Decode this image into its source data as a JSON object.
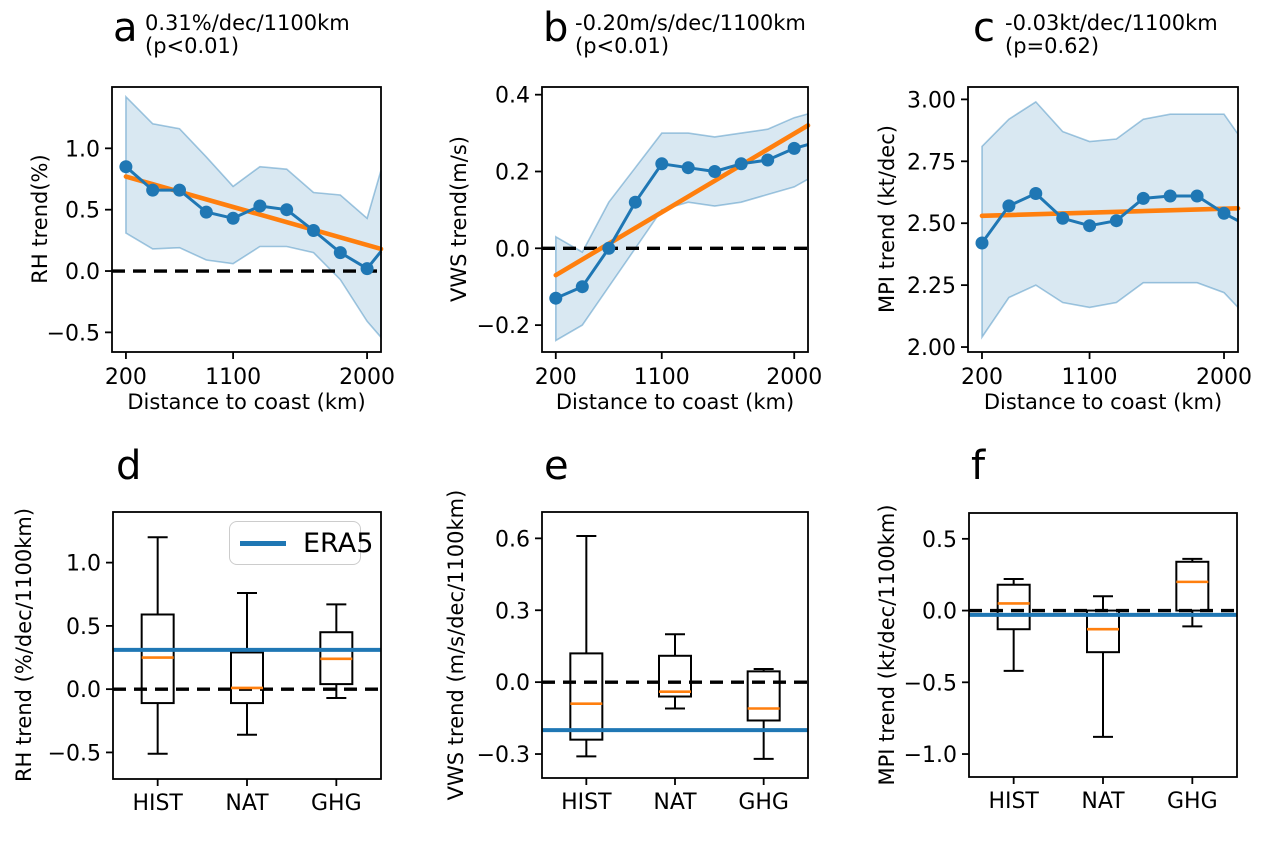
{
  "style": {
    "blue": "#1f77b4",
    "orange": "#ff7f0e",
    "band_fill": "rgba(31,119,180,0.17)",
    "band_edge": "rgba(31,119,180,0.40)",
    "axis_color": "#000000"
  },
  "chart_data": [
    {
      "id": "a",
      "type": "line",
      "letter": "a",
      "title": [
        "0.31%/dec/1100km",
        "(p<0.01)"
      ],
      "ylabel": "RH trend(%)",
      "xlabel": "Distance to coast (km)",
      "x_tick_labels": [
        "200",
        "1100",
        "2000"
      ],
      "x_tick_indices": [
        0,
        4,
        9
      ],
      "n_points": 10,
      "y": [
        0.85,
        0.66,
        0.66,
        0.48,
        0.43,
        0.53,
        0.5,
        0.33,
        0.15,
        0.02
      ],
      "y_right_edge": 0.16,
      "band_upper": [
        1.42,
        1.2,
        1.16,
        0.93,
        0.69,
        0.85,
        0.83,
        0.64,
        0.62,
        0.43
      ],
      "band_upper_right_edge": 0.82,
      "band_lower": [
        0.31,
        0.18,
        0.19,
        0.09,
        0.06,
        0.2,
        0.2,
        0.15,
        -0.07,
        -0.41
      ],
      "band_lower_right_edge": -0.54,
      "trend_line": {
        "start": 0.77,
        "end": 0.18
      },
      "zero_dashed_line": 0.0,
      "yticks": [
        1.0,
        0.5,
        0.0,
        -0.5
      ],
      "ytick_labels": [
        "1.0",
        "0.5",
        "0.0",
        "−0.5"
      ],
      "ylim": [
        -0.66,
        1.5
      ]
    },
    {
      "id": "b",
      "type": "line",
      "letter": "b",
      "title": [
        "-0.20m/s/dec/1100km",
        "(p<0.01)"
      ],
      "ylabel": "VWS trend(m/s)",
      "xlabel": "Distance to coast (km)",
      "x_tick_labels": [
        "200",
        "1100",
        "2000"
      ],
      "x_tick_indices": [
        0,
        4,
        9
      ],
      "n_points": 10,
      "y": [
        -0.13,
        -0.1,
        0.0,
        0.12,
        0.22,
        0.21,
        0.2,
        0.22,
        0.23,
        0.26
      ],
      "y_right_edge": 0.27,
      "band_upper": [
        0.03,
        -0.01,
        0.12,
        0.21,
        0.3,
        0.3,
        0.29,
        0.3,
        0.31,
        0.34
      ],
      "band_upper_right_edge": 0.35,
      "band_lower": [
        -0.24,
        -0.2,
        -0.1,
        0.0,
        0.1,
        0.12,
        0.11,
        0.12,
        0.14,
        0.16
      ],
      "band_lower_right_edge": 0.18,
      "trend_line": {
        "start": -0.07,
        "end": 0.32
      },
      "zero_dashed_line": 0.0,
      "yticks": [
        0.4,
        0.2,
        0.0,
        -0.2
      ],
      "ytick_labels": [
        "0.4",
        "0.2",
        "0.0",
        "−0.2"
      ],
      "ylim": [
        -0.27,
        0.42
      ]
    },
    {
      "id": "c",
      "type": "line",
      "letter": "c",
      "title": [
        "-0.03kt/dec/1100km",
        "(p=0.62)"
      ],
      "ylabel": "MPI trend (kt/dec)",
      "xlabel": "Distance to coast (km)",
      "x_tick_labels": [
        "200",
        "1100",
        "2000"
      ],
      "x_tick_indices": [
        0,
        4,
        9
      ],
      "n_points": 10,
      "y": [
        2.42,
        2.57,
        2.62,
        2.52,
        2.49,
        2.51,
        2.6,
        2.61,
        2.61,
        2.54
      ],
      "y_right_edge": 2.51,
      "band_upper": [
        2.81,
        2.92,
        2.99,
        2.87,
        2.83,
        2.84,
        2.92,
        2.94,
        2.94,
        2.94
      ],
      "band_upper_right_edge": 2.86,
      "band_lower": [
        2.04,
        2.2,
        2.25,
        2.18,
        2.16,
        2.18,
        2.26,
        2.26,
        2.26,
        2.22
      ],
      "band_lower_right_edge": 2.16,
      "trend_line": {
        "start": 2.53,
        "end": 2.56
      },
      "zero_dashed_line": null,
      "yticks": [
        3.0,
        2.75,
        2.5,
        2.25,
        2.0
      ],
      "ytick_labels": [
        "3.00",
        "2.75",
        "2.50",
        "2.25",
        "2.00"
      ],
      "ylim": [
        1.98,
        3.05
      ]
    },
    {
      "id": "d",
      "type": "box",
      "letter": "d",
      "ylabel": "RH trend (%/dec/1100km)",
      "categories": [
        "HIST",
        "NAT",
        "GHG"
      ],
      "boxes": [
        {
          "whisker_low": -0.51,
          "q1": -0.11,
          "median": 0.25,
          "q3": 0.59,
          "whisker_high": 1.2
        },
        {
          "whisker_low": -0.36,
          "q1": -0.11,
          "median": 0.01,
          "q3": 0.29,
          "whisker_high": 0.76
        },
        {
          "whisker_low": -0.07,
          "q1": 0.04,
          "median": 0.24,
          "q3": 0.45,
          "whisker_high": 0.67
        }
      ],
      "era5_reference_line": 0.31,
      "zero_dashed_line": 0.0,
      "yticks": [
        1.0,
        0.5,
        0.0,
        -0.5
      ],
      "ytick_labels": [
        "1.0",
        "0.5",
        "0.0",
        "−0.5"
      ],
      "ylim": [
        -0.71,
        1.4
      ],
      "legend": {
        "label": "ERA5"
      }
    },
    {
      "id": "e",
      "type": "box",
      "letter": "e",
      "ylabel": "VWS trend (m/s/dec/1100km)",
      "categories": [
        "HIST",
        "NAT",
        "GHG"
      ],
      "boxes": [
        {
          "whisker_low": -0.31,
          "q1": -0.24,
          "median": -0.09,
          "q3": 0.12,
          "whisker_high": 0.61
        },
        {
          "whisker_low": -0.11,
          "q1": -0.06,
          "median": -0.04,
          "q3": 0.11,
          "whisker_high": 0.2
        },
        {
          "whisker_low": -0.32,
          "q1": -0.16,
          "median": -0.11,
          "q3": 0.045,
          "whisker_high": 0.055
        }
      ],
      "era5_reference_line": -0.2,
      "zero_dashed_line": 0.0,
      "yticks": [
        0.6,
        0.3,
        0.0,
        -0.3
      ],
      "ytick_labels": [
        "0.6",
        "0.3",
        "0.0",
        "−0.3"
      ],
      "ylim": [
        -0.4,
        0.71
      ]
    },
    {
      "id": "f",
      "type": "box",
      "letter": "f",
      "ylabel": "MPI trend (kt/dec/1100km)",
      "categories": [
        "HIST",
        "NAT",
        "GHG"
      ],
      "boxes": [
        {
          "whisker_low": -0.42,
          "q1": -0.13,
          "median": 0.05,
          "q3": 0.18,
          "whisker_high": 0.22
        },
        {
          "whisker_low": -0.88,
          "q1": -0.29,
          "median": -0.13,
          "q3": 0.0,
          "whisker_high": 0.1
        },
        {
          "whisker_low": -0.11,
          "q1": 0.0,
          "median": 0.2,
          "q3": 0.34,
          "whisker_high": 0.36
        }
      ],
      "era5_reference_line": -0.03,
      "zero_dashed_line": 0.0,
      "yticks": [
        0.5,
        0.0,
        -0.5,
        -1.0
      ],
      "ytick_labels": [
        "0.5",
        "0.0",
        "−0.5",
        "−1.0"
      ],
      "ylim": [
        -1.16,
        0.68
      ]
    }
  ]
}
